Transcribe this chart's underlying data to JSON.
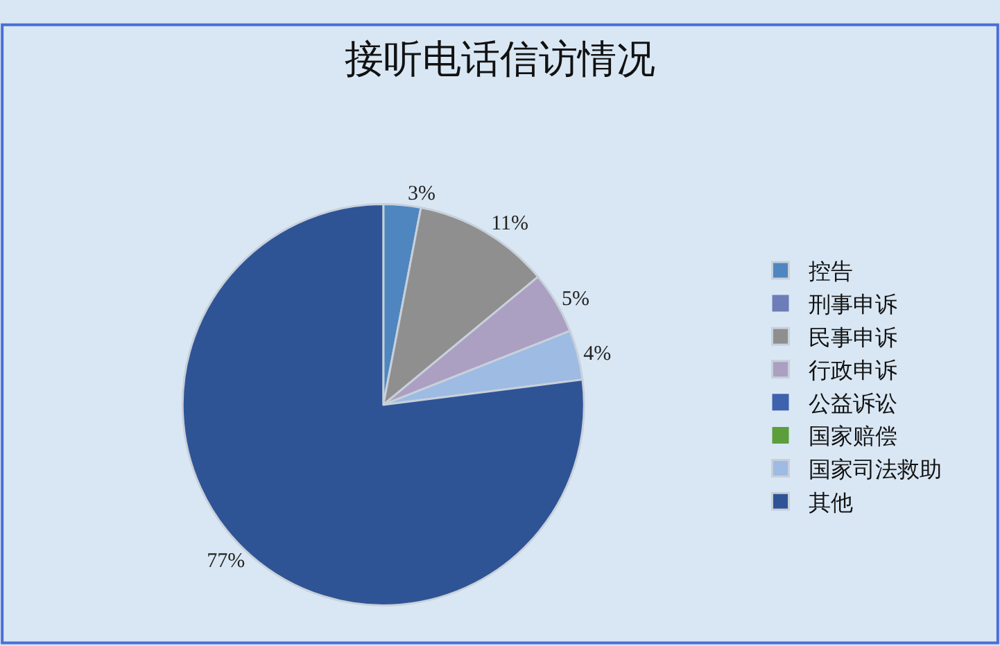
{
  "chart_data": {
    "type": "pie",
    "title": "接听电话信访情况",
    "categories": [
      "控告",
      "刑事申诉",
      "民事申诉",
      "行政申诉",
      "公益诉讼",
      "国家赔偿",
      "国家司法救助",
      "其他"
    ],
    "values": [
      3,
      0,
      11,
      5,
      0,
      0,
      4,
      77
    ],
    "value_labels": [
      "3%",
      null,
      "11%",
      "5%",
      null,
      null,
      "4%",
      "77%"
    ],
    "colors": [
      "#4f86c0",
      "#6e7db8",
      "#8f8f8f",
      "#ab9fc2",
      "#3e62ad",
      "#5c9e3c",
      "#9dbbe3",
      "#2f5496"
    ],
    "legend": "right"
  }
}
